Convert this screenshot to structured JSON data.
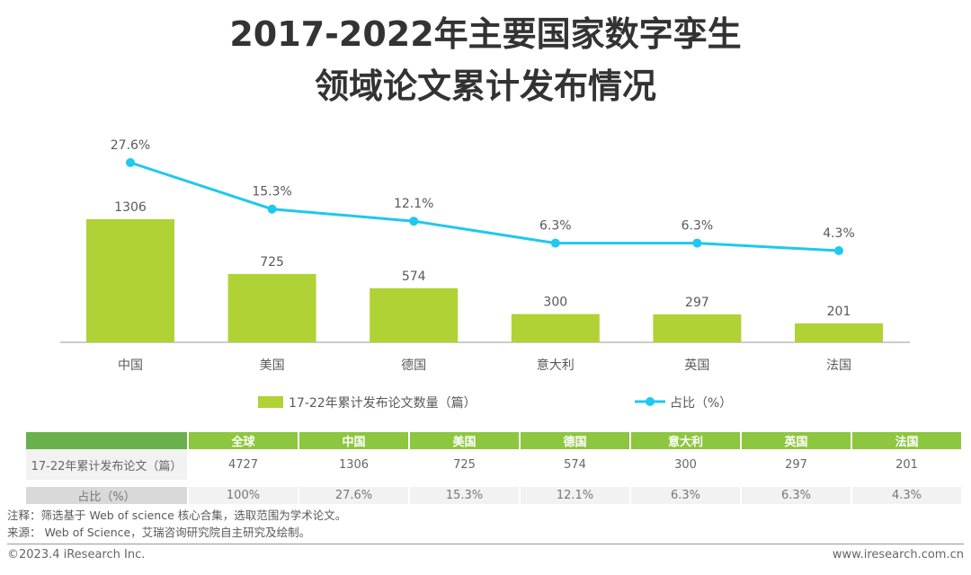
{
  "title_line1": "2017-2022年主要国家数字孪生",
  "title_line2": "领域论文累计发布情况",
  "chart_data": {
    "type": "bar+line",
    "categories": [
      "中国",
      "美国",
      "德国",
      "意大利",
      "英国",
      "法国"
    ],
    "series": [
      {
        "name": "17-22年累计发布论文数量（篇）",
        "type": "bar",
        "color": "#b0d235",
        "values": [
          1306,
          725,
          574,
          300,
          297,
          201
        ],
        "labels": [
          "1306",
          "725",
          "574",
          "300",
          "297",
          "201"
        ]
      },
      {
        "name": "占比（%）",
        "type": "line",
        "color": "#1ec8ef",
        "values": [
          27.6,
          15.3,
          12.1,
          6.3,
          6.3,
          4.3
        ],
        "labels": [
          "27.6%",
          "15.3%",
          "12.1%",
          "6.3%",
          "6.3%",
          "4.3%"
        ]
      }
    ],
    "legend": "bottom"
  },
  "table": {
    "header": [
      "",
      "全球",
      "中国",
      "美国",
      "德国",
      "意大利",
      "英国",
      "法国"
    ],
    "rows": [
      [
        "17-22年累计发布论文（篇）",
        "4727",
        "1306",
        "725",
        "574",
        "300",
        "297",
        "201"
      ],
      [
        "占比（%）",
        "100%",
        "27.6%",
        "15.3%",
        "12.1%",
        "6.3%",
        "6.3%",
        "4.3%"
      ]
    ]
  },
  "note": "注释：筛选基于 Web of science 核心合集，选取范围为学术论文。",
  "source": "来源： Web of Science，艾瑞咨询研究院自主研究及绘制。",
  "copyright": "©2023.4 iResearch Inc.",
  "website": "www.iresearch.com.cn"
}
